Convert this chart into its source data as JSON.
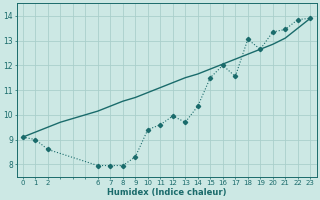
{
  "xlabel": "Humidex (Indice chaleur)",
  "background_color": "#cce8e4",
  "grid_color": "#aacfcb",
  "line_color": "#1a6b6b",
  "xlim": [
    -0.5,
    23.5
  ],
  "ylim": [
    7.5,
    14.5
  ],
  "xtick_labels": [
    "0",
    "1",
    "2",
    "",
    "",
    "",
    "6",
    "7",
    "8",
    "9",
    "10",
    "11",
    "12",
    "13",
    "14",
    "15",
    "16",
    "17",
    "18",
    "19",
    "20",
    "21",
    "22",
    "23"
  ],
  "xtick_positions": [
    0,
    1,
    2,
    3,
    4,
    5,
    6,
    7,
    8,
    9,
    10,
    11,
    12,
    13,
    14,
    15,
    16,
    17,
    18,
    19,
    20,
    21,
    22,
    23
  ],
  "ytick_positions": [
    8,
    9,
    10,
    11,
    12,
    13,
    14
  ],
  "line1_x": [
    0,
    1,
    2,
    3,
    4,
    5,
    6,
    7,
    8,
    9,
    10,
    11,
    12,
    13,
    14,
    15,
    16,
    17,
    18,
    19,
    20,
    21,
    22,
    23
  ],
  "line1_y": [
    9.1,
    9.3,
    9.5,
    9.7,
    9.85,
    10.0,
    10.15,
    10.35,
    10.55,
    10.7,
    10.9,
    11.1,
    11.3,
    11.5,
    11.65,
    11.85,
    12.05,
    12.25,
    12.45,
    12.65,
    12.85,
    13.1,
    13.5,
    13.9
  ],
  "line2_x": [
    0,
    1,
    2,
    6,
    7,
    8,
    9,
    10,
    11,
    12,
    13,
    14,
    15,
    16,
    17,
    18,
    19,
    20,
    21,
    22,
    23
  ],
  "line2_y": [
    9.1,
    9.0,
    8.6,
    7.95,
    7.95,
    7.95,
    8.3,
    9.4,
    9.6,
    9.95,
    9.7,
    10.35,
    11.5,
    12.0,
    11.55,
    13.05,
    12.65,
    13.35,
    13.45,
    13.85,
    13.9
  ]
}
